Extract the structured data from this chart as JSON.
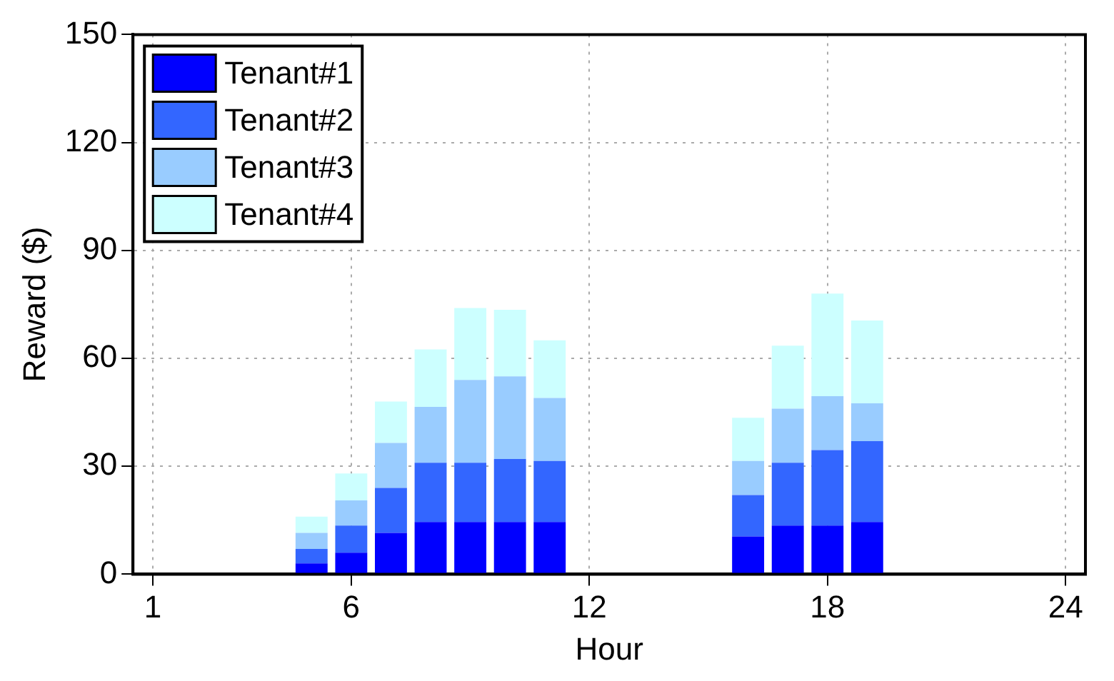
{
  "chart_data": {
    "type": "bar",
    "stacked": true,
    "xlabel": "Hour",
    "ylabel": "Reward ($)",
    "x": [
      5,
      6,
      7,
      8,
      9,
      10,
      11,
      16,
      17,
      18,
      19
    ],
    "series": [
      {
        "name": "Tenant#1",
        "color": "#0000ff",
        "values": [
          3,
          6,
          11.5,
          14.5,
          14.5,
          14.5,
          14.5,
          10.5,
          13.5,
          13.5,
          14.5
        ]
      },
      {
        "name": "Tenant#2",
        "color": "#3366ff",
        "values": [
          4,
          7.5,
          12.5,
          16.5,
          16.5,
          17.5,
          17,
          11.5,
          17.5,
          21,
          22.5
        ]
      },
      {
        "name": "Tenant#3",
        "color": "#99ccff",
        "values": [
          4.5,
          7,
          12.5,
          15.5,
          23,
          23,
          17.5,
          9.5,
          15,
          15,
          10.5
        ]
      },
      {
        "name": "Tenant#4",
        "color": "#ccffff",
        "values": [
          4.5,
          7.5,
          11.5,
          16,
          20,
          18.5,
          16,
          12,
          17.5,
          28.5,
          23
        ]
      }
    ],
    "xlim": [
      0.5,
      24.5
    ],
    "xticks": [
      1,
      6,
      12,
      18,
      24
    ],
    "ylim": [
      0,
      150
    ],
    "yticks": [
      0,
      30,
      60,
      90,
      120,
      150
    ],
    "grid": true,
    "legend": "top left"
  }
}
